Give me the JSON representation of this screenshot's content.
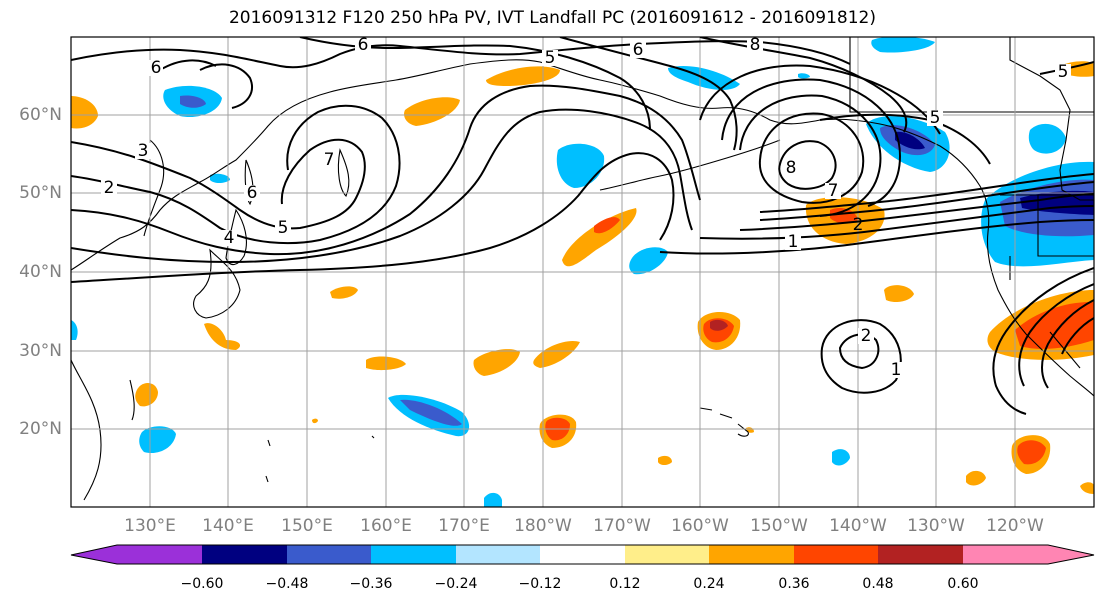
{
  "title": "2016091312 F120 250 hPa PV, IVT Landfall PC (2016091612 - 2016091812)",
  "lat_labels": [
    "60°N",
    "50°N",
    "40°N",
    "30°N",
    "20°N"
  ],
  "lon_labels": [
    "130°E",
    "140°E",
    "150°E",
    "160°E",
    "170°E",
    "180°W",
    "170°W",
    "160°W",
    "150°W",
    "140°W",
    "130°W",
    "120°W"
  ],
  "colorbar": {
    "ticks": [
      "−0.60",
      "−0.48",
      "−0.36",
      "−0.24",
      "−0.12",
      "0.12",
      "0.24",
      "0.36",
      "0.48",
      "0.60"
    ],
    "colors": [
      "#9b30d9",
      "#000080",
      "#3a5bcc",
      "#00bfff",
      "#b3e5ff",
      "#ffffff",
      "#ffee8a",
      "#ffa500",
      "#ff4500",
      "#b22222",
      "#ff85b3"
    ]
  },
  "contour_labels": [
    {
      "text": "6"
    },
    {
      "text": "6"
    },
    {
      "text": "6"
    },
    {
      "text": "5"
    },
    {
      "text": "8"
    },
    {
      "text": "5"
    },
    {
      "text": "3"
    },
    {
      "text": "2"
    },
    {
      "text": "7"
    },
    {
      "text": "6"
    },
    {
      "text": "5"
    },
    {
      "text": "4"
    },
    {
      "text": "8"
    },
    {
      "text": "7"
    },
    {
      "text": "2"
    },
    {
      "text": "1"
    },
    {
      "text": "5"
    },
    {
      "text": "2"
    },
    {
      "text": "1"
    }
  ]
}
